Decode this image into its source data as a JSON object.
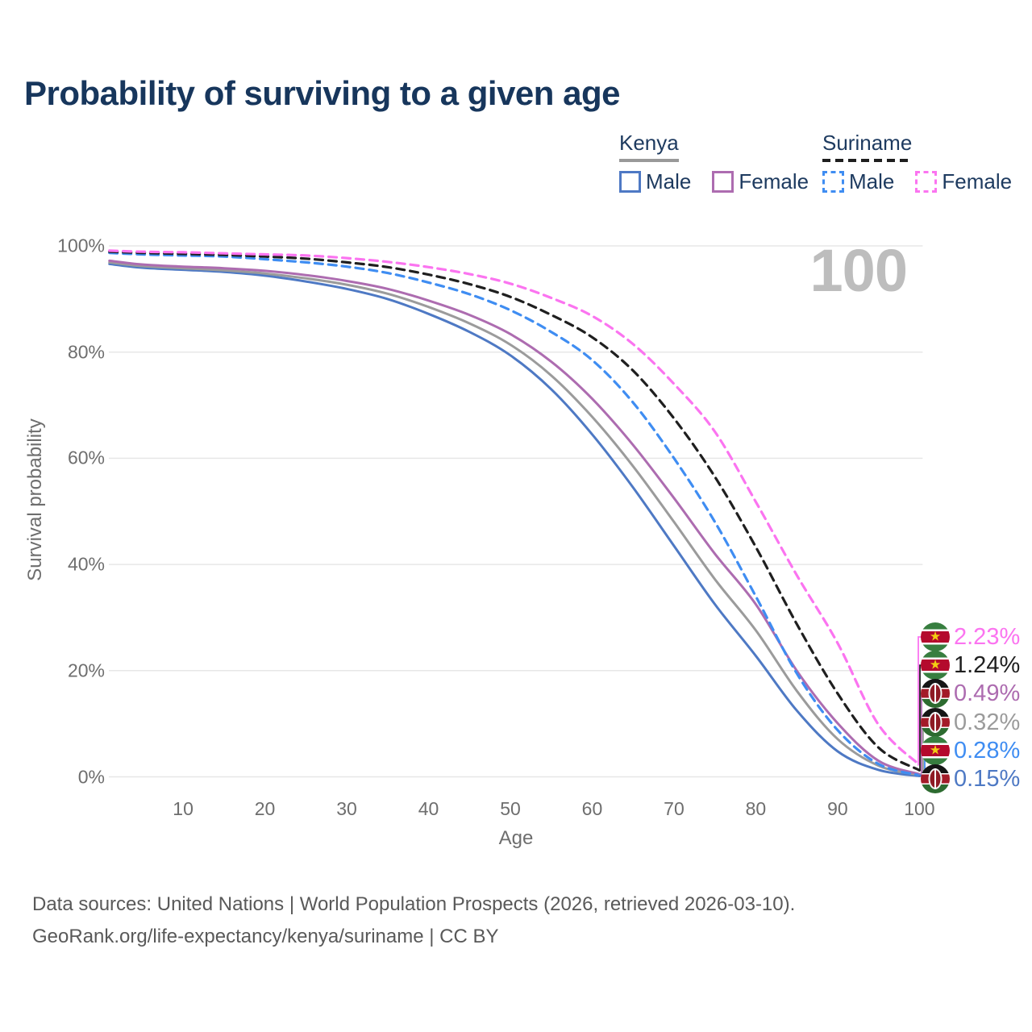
{
  "title": "Probability of surviving to a given age",
  "watermark": "100",
  "legend": {
    "groups": [
      {
        "id": "kenya",
        "label": "Kenya",
        "underline_style": "solid",
        "underline_color": "#999999",
        "items": [
          {
            "label": "Male",
            "swatch_color": "#4e79c4",
            "dashed": false
          },
          {
            "label": "Female",
            "swatch_color": "#ad6cb0",
            "dashed": false
          }
        ]
      },
      {
        "id": "suriname",
        "label": "Suriname",
        "underline_style": "dashed",
        "underline_color": "#1f1f1f",
        "items": [
          {
            "label": "Male",
            "swatch_color": "#3f8df2",
            "dashed": true
          },
          {
            "label": "Female",
            "swatch_color": "#fb74f0",
            "dashed": true
          }
        ]
      }
    ]
  },
  "chart_data": {
    "type": "line",
    "title": "Probability of surviving to a given age",
    "xlabel": "Age",
    "ylabel": "Survival probability",
    "x_range": [
      1,
      100
    ],
    "y_range": [
      0,
      100
    ],
    "grid": "horizontal-only",
    "x_ticks": [
      10,
      20,
      30,
      40,
      50,
      60,
      70,
      80,
      90,
      100
    ],
    "y_ticks": [
      {
        "value": 100,
        "label": "100%"
      },
      {
        "value": 80,
        "label": "80%"
      },
      {
        "value": 60,
        "label": "60%"
      },
      {
        "value": 40,
        "label": "40%"
      },
      {
        "value": 20,
        "label": "20%"
      },
      {
        "value": 0,
        "label": "0%"
      }
    ],
    "ages": [
      1,
      5,
      10,
      15,
      20,
      25,
      30,
      35,
      40,
      45,
      50,
      55,
      60,
      65,
      70,
      75,
      80,
      85,
      90,
      95,
      100
    ],
    "series": [
      {
        "id": "kenya-male",
        "name": "Kenya Male",
        "flag": "kenya",
        "color": "#4e79c4",
        "dashed": false,
        "end_label": "0.15%",
        "values": [
          96.6,
          95.9,
          95.5,
          95.1,
          94.4,
          93.3,
          91.9,
          90.0,
          87.2,
          83.8,
          79.4,
          73.0,
          64.5,
          54.5,
          43.5,
          32.5,
          22.8,
          12.5,
          4.8,
          1.3,
          0.15
        ]
      },
      {
        "id": "kenya-all",
        "name": "Kenya",
        "flag": "kenya",
        "color": "#9b9b9b",
        "dashed": false,
        "end_label": "0.32%",
        "values": [
          96.9,
          96.2,
          95.8,
          95.4,
          94.8,
          93.9,
          92.7,
          91.0,
          88.5,
          85.4,
          81.4,
          75.6,
          67.8,
          58.5,
          48.0,
          37.2,
          27.6,
          16.2,
          7.1,
          2.1,
          0.32
        ]
      },
      {
        "id": "kenya-female",
        "name": "Kenya Female",
        "flag": "kenya",
        "color": "#ad6cb0",
        "dashed": false,
        "end_label": "0.49%",
        "values": [
          97.2,
          96.5,
          96.1,
          95.8,
          95.3,
          94.5,
          93.4,
          91.9,
          89.7,
          87.0,
          83.4,
          78.2,
          71.2,
          62.5,
          52.5,
          42.0,
          32.5,
          20.0,
          10.1,
          3.0,
          0.49
        ]
      },
      {
        "id": "suriname-male",
        "name": "Suriname Male",
        "flag": "suriname",
        "color": "#3f8df2",
        "dashed": true,
        "end_label": "0.28%",
        "values": [
          98.7,
          98.4,
          98.2,
          98.0,
          97.5,
          96.9,
          96.1,
          94.9,
          93.1,
          90.9,
          87.9,
          83.8,
          78.5,
          70.5,
          60.0,
          48.0,
          34.0,
          19.5,
          8.8,
          2.4,
          0.28
        ]
      },
      {
        "id": "suriname-all",
        "name": "Suriname",
        "flag": "suriname",
        "color": "#1f1f1f",
        "dashed": true,
        "end_label": "1.24%",
        "values": [
          98.9,
          98.7,
          98.5,
          98.3,
          98.0,
          97.6,
          96.9,
          96.0,
          94.6,
          92.8,
          90.4,
          87.0,
          82.8,
          76.5,
          67.5,
          56.5,
          43.3,
          28.8,
          15.7,
          5.5,
          1.24
        ]
      },
      {
        "id": "suriname-female",
        "name": "Suriname Female",
        "flag": "suriname",
        "color": "#fb74f0",
        "dashed": true,
        "end_label": "2.23%",
        "values": [
          99.1,
          98.9,
          98.8,
          98.6,
          98.4,
          98.2,
          97.7,
          97.0,
          96.0,
          94.7,
          92.9,
          90.2,
          86.8,
          81.5,
          74.0,
          65.0,
          51.8,
          38.0,
          25.2,
          9.8,
          2.23
        ]
      }
    ]
  },
  "footer": {
    "line1": "Data sources: United Nations | World Population Prospects (2026, retrieved 2026-03-10).",
    "line2": "GeoRank.org/life-expectancy/kenya/suriname | CC BY"
  }
}
